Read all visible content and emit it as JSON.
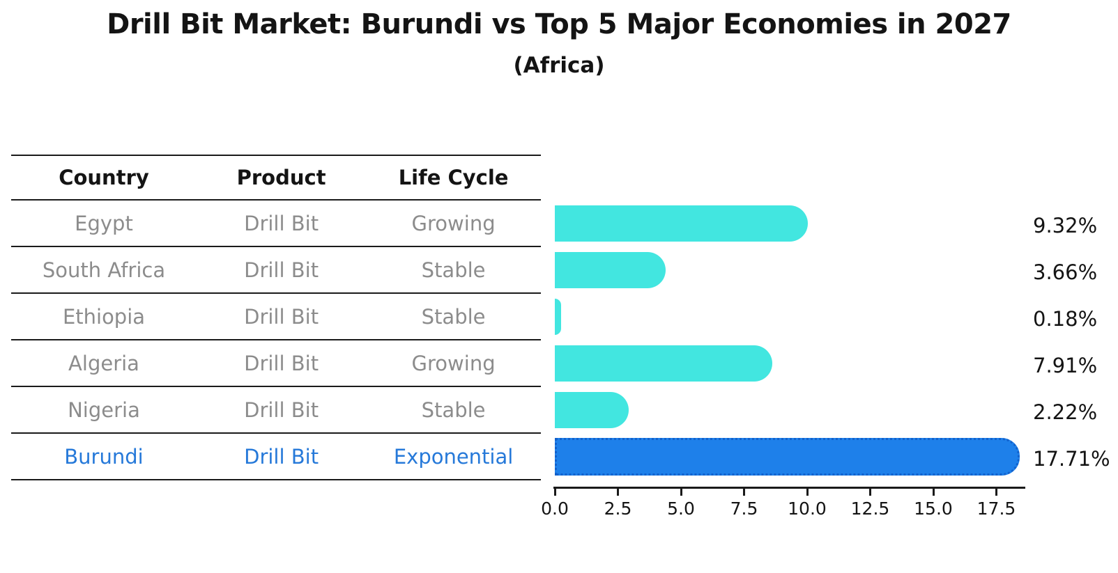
{
  "title": "Drill Bit Market: Burundi vs Top 5 Major Economies in 2027",
  "subtitle": "(Africa)",
  "table": {
    "headers": [
      "Country",
      "Product",
      "Life Cycle"
    ],
    "rows": [
      {
        "country": "Egypt",
        "product": "Drill Bit",
        "life_cycle": "Growing",
        "highlight": false
      },
      {
        "country": "South Africa",
        "product": "Drill Bit",
        "life_cycle": "Stable",
        "highlight": false
      },
      {
        "country": "Ethiopia",
        "product": "Drill Bit",
        "life_cycle": "Stable",
        "highlight": false
      },
      {
        "country": "Algeria",
        "product": "Drill Bit",
        "life_cycle": "Growing",
        "highlight": false
      },
      {
        "country": "Nigeria",
        "product": "Drill Bit",
        "life_cycle": "Stable",
        "highlight": false
      },
      {
        "country": "Burundi",
        "product": "Drill Bit",
        "life_cycle": "Exponential",
        "highlight": true
      }
    ]
  },
  "chart_data": {
    "type": "bar",
    "orientation": "horizontal",
    "title": "Drill Bit Market: Burundi vs Top 5 Major Economies in 2027",
    "subtitle": "(Africa)",
    "categories": [
      "Egypt",
      "South Africa",
      "Ethiopia",
      "Algeria",
      "Nigeria",
      "Burundi"
    ],
    "values": [
      9.32,
      3.66,
      0.18,
      7.91,
      2.22,
      17.71
    ],
    "value_labels": [
      "9.32%",
      "3.66%",
      "0.18%",
      "7.91%",
      "2.22%",
      "17.71%"
    ],
    "x_ticks": [
      "0.0",
      "2.5",
      "5.0",
      "7.5",
      "10.0",
      "12.5",
      "15.0",
      "17.5"
    ],
    "x_tick_values": [
      0,
      2.5,
      5,
      7.5,
      10,
      12.5,
      15,
      17.5
    ],
    "xlim": [
      0,
      18.6
    ],
    "grid": false,
    "legend": "none",
    "highlight_index": 5,
    "bar_color_default": "#42E6E0",
    "bar_color_highlight": "#1E80EA"
  },
  "colors": {
    "background": "#FFFFFF",
    "text_primary": "#141414",
    "text_muted": "#8C8C8C",
    "highlight_text": "#2679D9",
    "bar_default": "#42E6E0",
    "bar_highlight": "#1E80EA",
    "bar_highlight_border": "#1261CC",
    "axis": "#1A1A1A"
  }
}
